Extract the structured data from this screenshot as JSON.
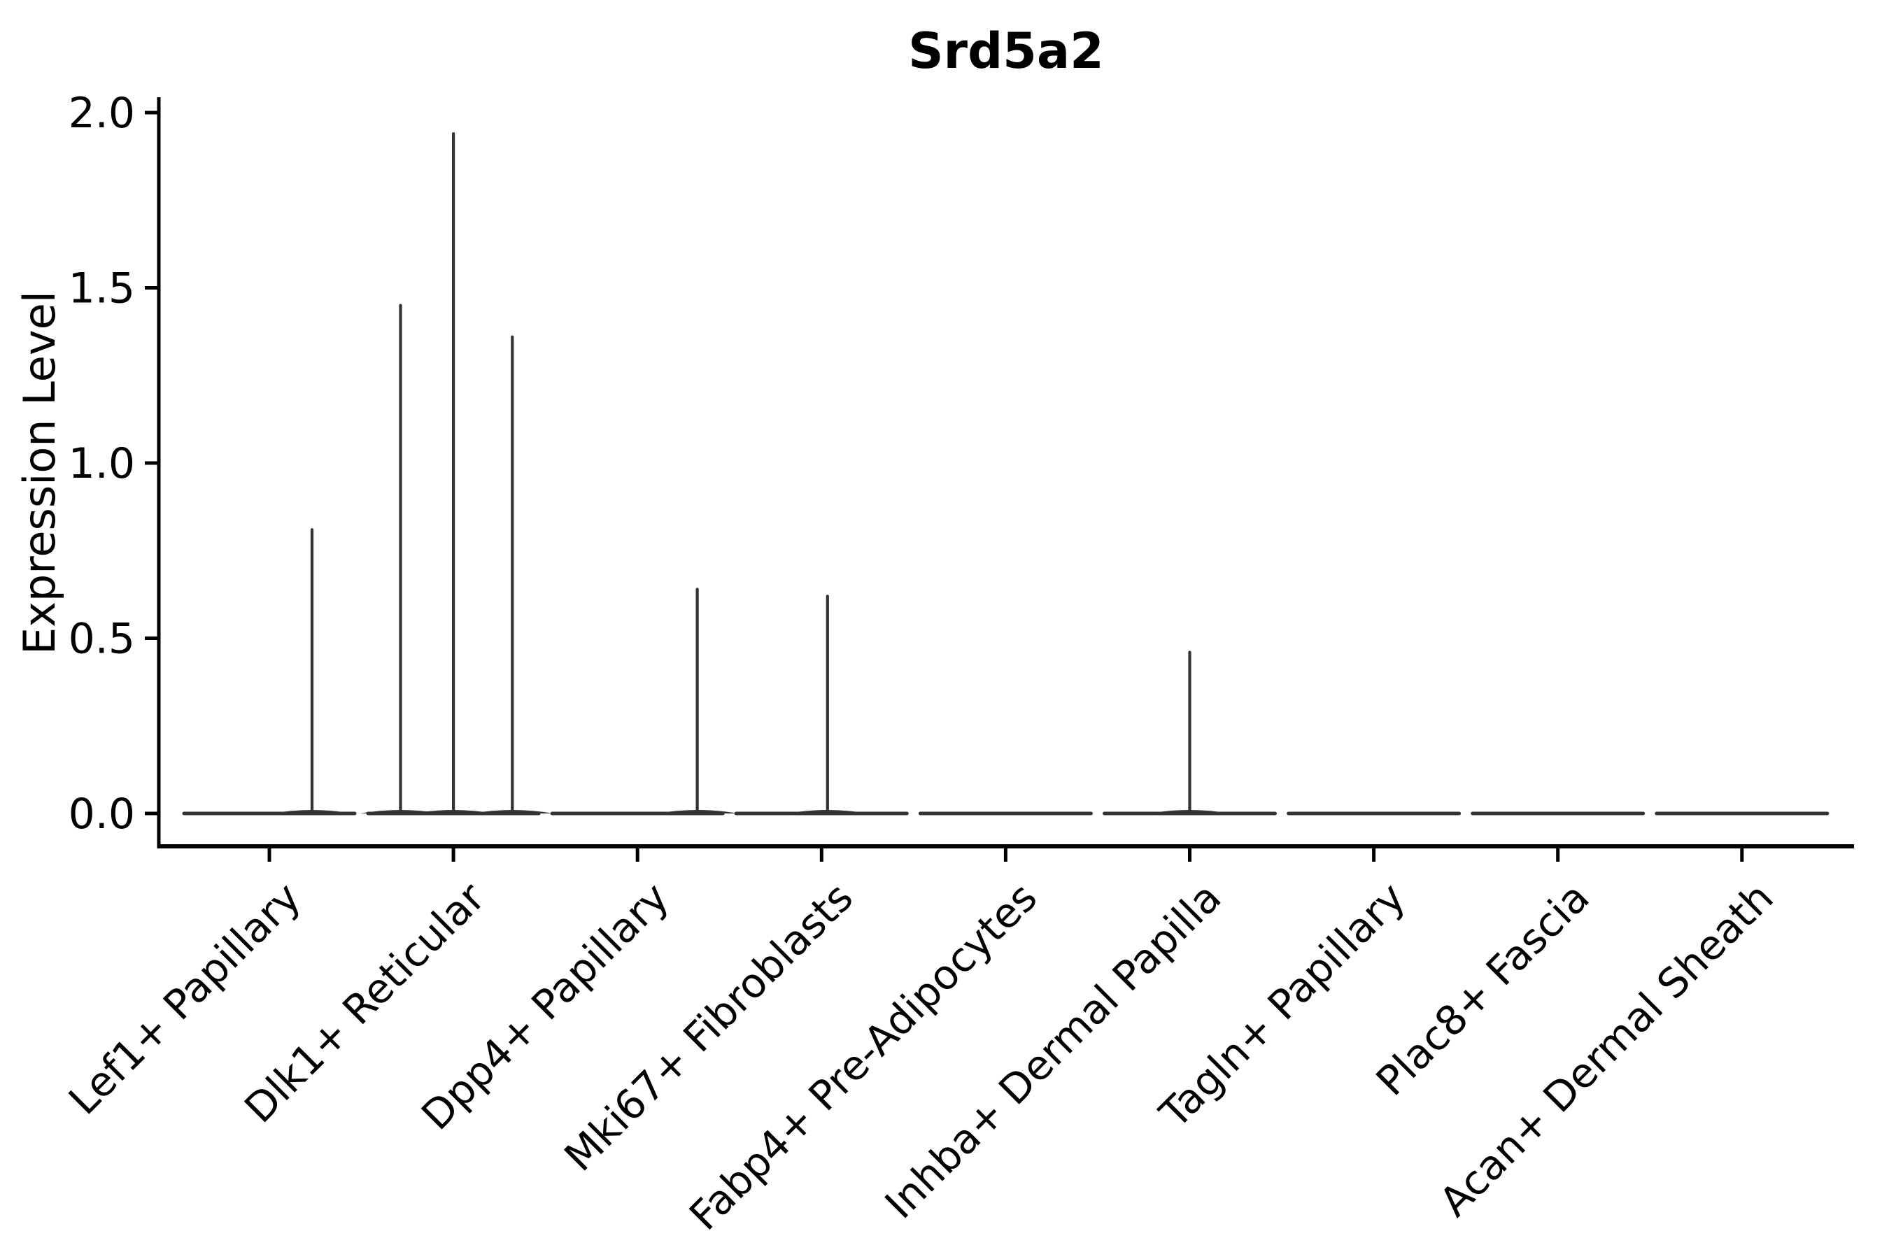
{
  "title": "Srd5a2",
  "chart_data": {
    "type": "violin",
    "title": "Srd5a2",
    "xlabel": "",
    "ylabel": "Expression Level",
    "ylim": [
      0.0,
      2.0
    ],
    "yticks": [
      0.0,
      0.5,
      1.0,
      1.5,
      2.0
    ],
    "ytick_labels": [
      "0.0",
      "0.5",
      "1.0",
      "1.5",
      "2.0"
    ],
    "grid": false,
    "legend": "none",
    "line_color": "#333333",
    "axis_color": "#000000",
    "categories": [
      "Lef1+ Papillary",
      "Dlk1+ Reticular",
      "Dpp4+ Papillary",
      "Mki67+ Fibroblasts",
      "Fabp4+ Pre-Adipocytes",
      "Inhba+ Dermal Papilla",
      "Tagln+ Papillary",
      "Plac8+ Fascia",
      "Acan+ Dermal Sheath"
    ],
    "series": [
      {
        "category": "Lef1+ Papillary",
        "baseline_value": 0.0,
        "spikes": [
          {
            "offset_frac": 0.5,
            "max_value": 0.81
          }
        ]
      },
      {
        "category": "Dlk1+ Reticular",
        "baseline_value": 0.0,
        "spikes": [
          {
            "offset_frac": -0.62,
            "max_value": 1.45
          },
          {
            "offset_frac": 0.0,
            "max_value": 1.94
          },
          {
            "offset_frac": 0.69,
            "max_value": 1.36
          }
        ]
      },
      {
        "category": "Dpp4+ Papillary",
        "baseline_value": 0.0,
        "spikes": [
          {
            "offset_frac": 0.7,
            "max_value": 0.64
          }
        ]
      },
      {
        "category": "Mki67+ Fibroblasts",
        "baseline_value": 0.0,
        "spikes": [
          {
            "offset_frac": 0.07,
            "max_value": 0.62
          }
        ]
      },
      {
        "category": "Fabp4+ Pre-Adipocytes",
        "baseline_value": 0.0,
        "spikes": []
      },
      {
        "category": "Inhba+ Dermal Papilla",
        "baseline_value": 0.0,
        "spikes": [
          {
            "offset_frac": 0.0,
            "max_value": 0.46
          }
        ]
      },
      {
        "category": "Tagln+ Papillary",
        "baseline_value": 0.0,
        "spikes": []
      },
      {
        "category": "Plac8+ Fascia",
        "baseline_value": 0.0,
        "spikes": []
      },
      {
        "category": "Acan+ Dermal Sheath",
        "baseline_value": 0.0,
        "spikes": []
      }
    ]
  }
}
